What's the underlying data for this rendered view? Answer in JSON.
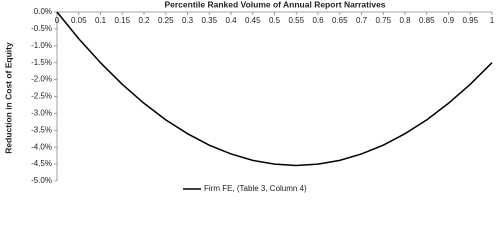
{
  "chart_data": {
    "type": "line",
    "title": "Percentile Ranked Volume of Annual Report Narratives",
    "y_label": "Reduction in Cost of Equity",
    "x": [
      0,
      0.05,
      0.1,
      0.15,
      0.2,
      0.25,
      0.3,
      0.35,
      0.4,
      0.45,
      0.5,
      0.55,
      0.6,
      0.65,
      0.7,
      0.75,
      0.8,
      0.85,
      0.9,
      0.95,
      1
    ],
    "series": [
      {
        "name": "Firm FE, (Table 3, Column 4)",
        "color": "#000000",
        "values": [
          0,
          -0.79,
          -1.5,
          -2.14,
          -2.7,
          -3.19,
          -3.6,
          -3.94,
          -4.2,
          -4.39,
          -4.5,
          -4.54,
          -4.5,
          -4.39,
          -4.2,
          -3.94,
          -3.6,
          -3.19,
          -2.7,
          -2.14,
          -1.5
        ]
      }
    ],
    "xlim": [
      0,
      1
    ],
    "xticks": [
      0,
      0.05,
      0.1,
      0.15,
      0.2,
      0.25,
      0.3,
      0.35,
      0.4,
      0.45,
      0.5,
      0.55,
      0.6,
      0.65,
      0.7,
      0.75,
      0.8,
      0.85,
      0.9,
      0.95,
      1
    ],
    "ylim": [
      -5,
      0
    ],
    "yticks": [
      {
        "value": 0,
        "label": "0.0%"
      },
      {
        "value": -0.5,
        "label": "-0.5%"
      },
      {
        "value": -1,
        "label": "-1.0%"
      },
      {
        "value": -1.5,
        "label": "-1.5%"
      },
      {
        "value": -2,
        "label": "-2.0%"
      },
      {
        "value": -2.5,
        "label": "-2.5%"
      },
      {
        "value": -3,
        "label": "-3.0%"
      },
      {
        "value": -3.5,
        "label": "-3.5%"
      },
      {
        "value": -4,
        "label": "-4.0%"
      },
      {
        "value": -4.5,
        "label": "-4.5%"
      },
      {
        "value": -5,
        "label": "-5.0%"
      }
    ],
    "grid": false,
    "legend": "bottom"
  }
}
